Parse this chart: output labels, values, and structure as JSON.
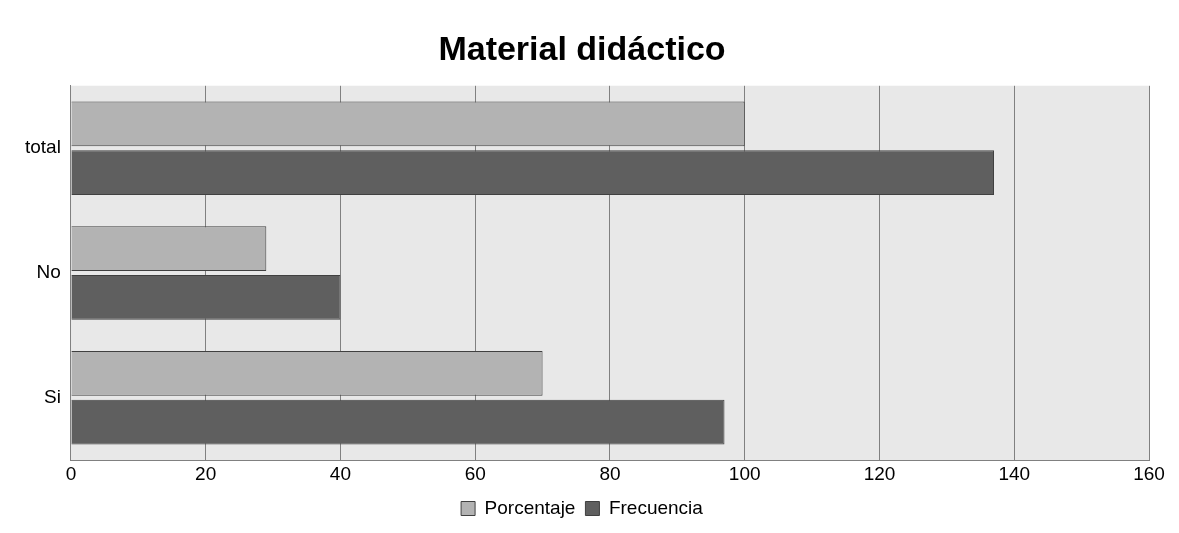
{
  "chart_data": {
    "type": "bar",
    "title": "Material didáctico",
    "orientation": "horizontal",
    "categories": [
      "total",
      "No",
      "Si"
    ],
    "series": [
      {
        "name": "Porcentaje",
        "color": "#b3b3b3",
        "values": [
          100,
          29,
          70
        ]
      },
      {
        "name": "Frecuencia",
        "color": "#5f5f5f",
        "values": [
          137,
          40,
          97
        ]
      }
    ],
    "xlim": [
      0,
      160
    ],
    "xticks": [
      0,
      20,
      40,
      60,
      80,
      100,
      120,
      140,
      160
    ],
    "grid": "x",
    "legend": "bottom"
  }
}
